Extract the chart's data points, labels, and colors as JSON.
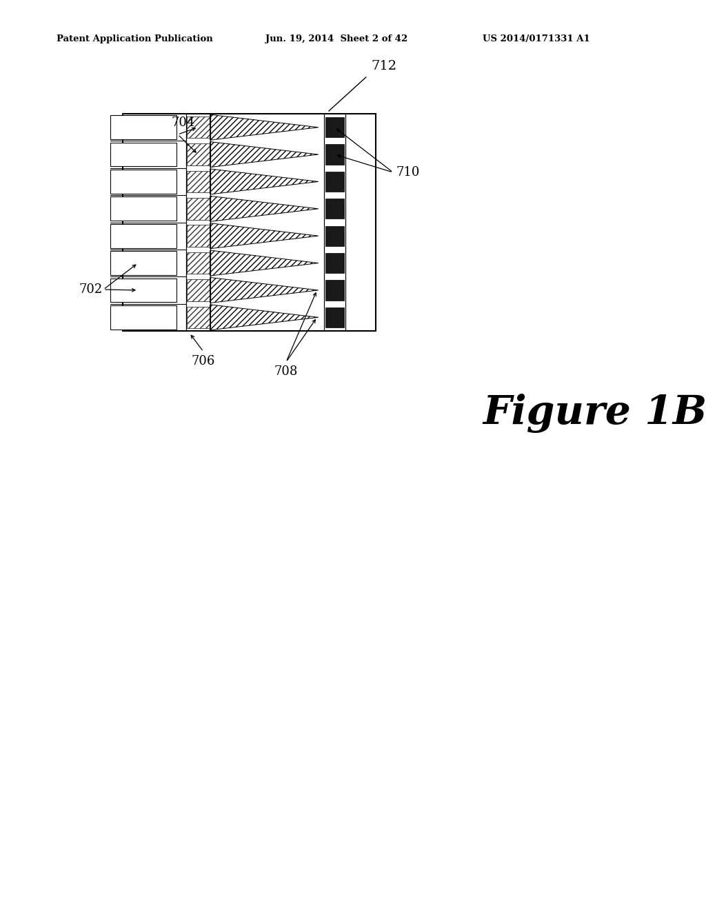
{
  "bg_color": "#ffffff",
  "header_left": "Patent Application Publication",
  "header_mid": "Jun. 19, 2014  Sheet 2 of 42",
  "header_right": "US 2014/0171331 A1",
  "figure_label": "Figure 1B",
  "label_712": "712",
  "label_704": "704",
  "label_702": "702",
  "label_710": "710",
  "label_706": "706",
  "label_708": "708",
  "n_units": 8,
  "hatch_color": "#555555",
  "dark_rect_color": "#1a1a1a"
}
